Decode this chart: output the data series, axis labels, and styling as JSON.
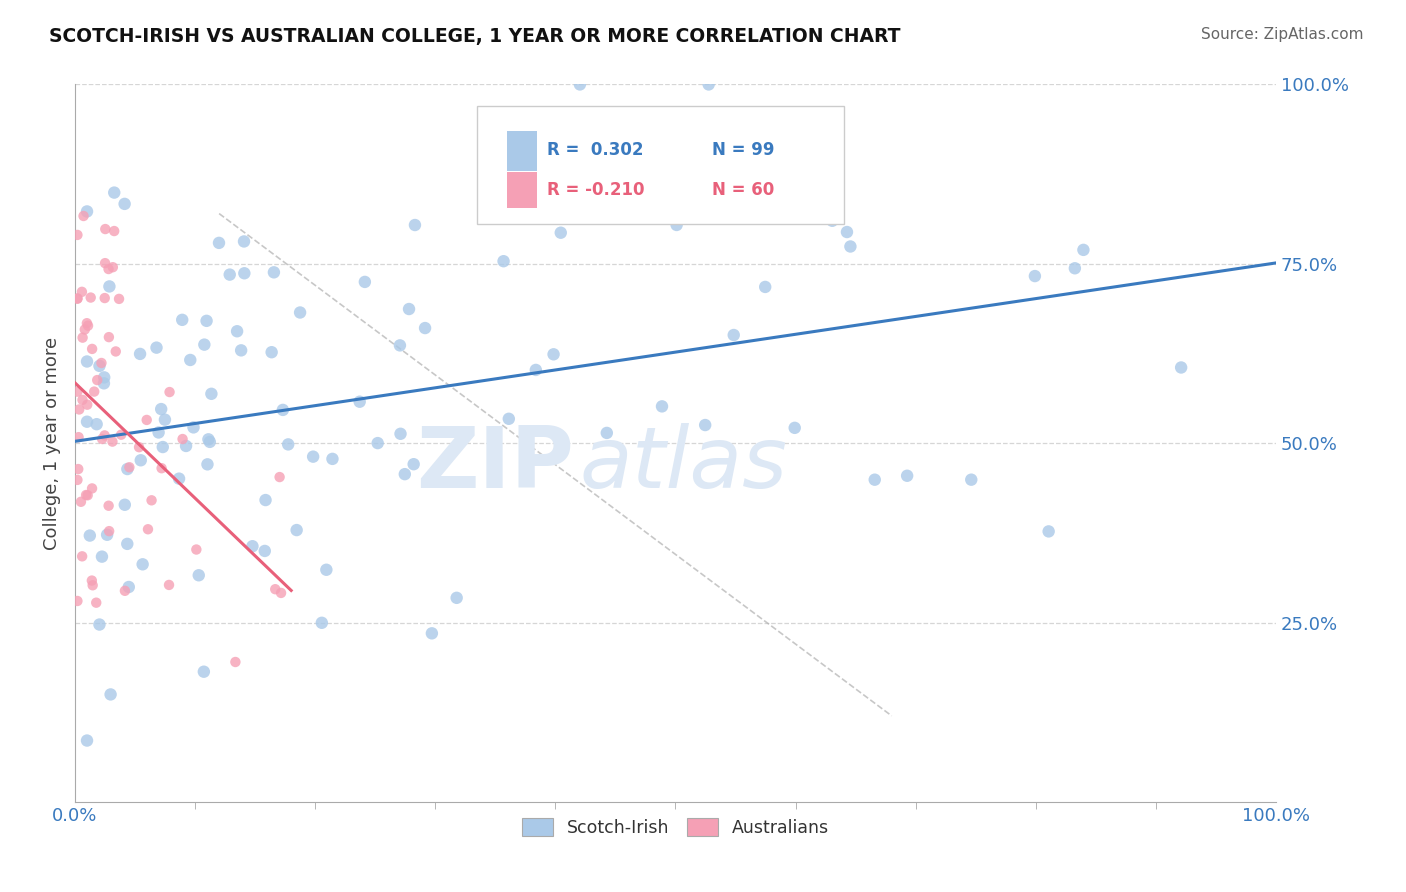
{
  "title": "SCOTCH-IRISH VS AUSTRALIAN COLLEGE, 1 YEAR OR MORE CORRELATION CHART",
  "source": "Source: ZipAtlas.com",
  "ylabel": "College, 1 year or more",
  "xlim": [
    0.0,
    1.0
  ],
  "ylim": [
    0.0,
    1.0
  ],
  "legend_blue_r": "R =  0.302",
  "legend_blue_n": "N = 99",
  "legend_pink_r": "R = -0.210",
  "legend_pink_n": "N = 60",
  "blue_color": "#aac9e8",
  "blue_line_color": "#3a7abf",
  "pink_color": "#f5a0b5",
  "pink_line_color": "#e8607a",
  "gray_dash_color": "#b0b0b0",
  "grid_color": "#cccccc",
  "background_color": "#ffffff",
  "tick_label_color": "#3a7abf",
  "watermark_color": "#dde8f5",
  "marker_size": 80,
  "si_seed": 42,
  "au_seed": 77
}
